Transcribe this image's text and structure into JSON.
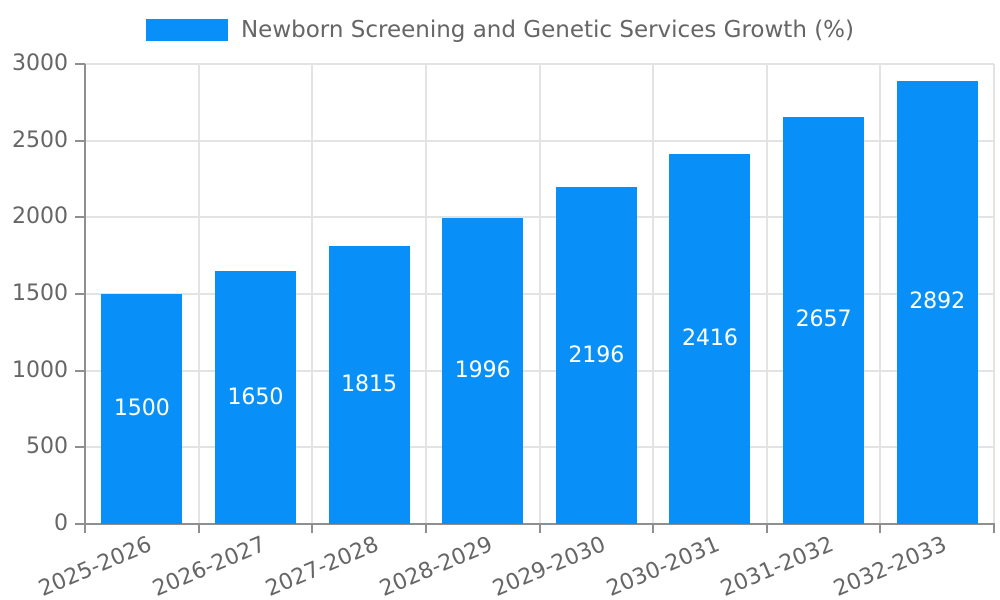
{
  "chart_data": {
    "type": "bar",
    "title": "Newborn Screening and Genetic Services Growth (%)",
    "legend": {
      "position": "top",
      "label": "Newborn Screening and Genetic Services Growth (%)"
    },
    "categories": [
      "2025-2026",
      "2026-2027",
      "2027-2028",
      "2028-2029",
      "2029-2030",
      "2030-2031",
      "2031-2032",
      "2032-2033"
    ],
    "series": [
      {
        "name": "Newborn Screening and Genetic Services Growth (%)",
        "values": [
          1500,
          1650,
          1815,
          1996,
          2196,
          2416,
          2657,
          2892
        ],
        "data_labels": [
          "1500",
          "1650",
          "1815",
          "1996",
          "2196",
          "2416",
          "2657",
          "2892"
        ]
      }
    ],
    "ylabel": "",
    "xlabel": "",
    "ylim": [
      0,
      3000
    ],
    "yticks": [
      0,
      500,
      1000,
      1500,
      2000,
      2500,
      3000
    ],
    "ytick_labels": [
      "0",
      "500",
      "1000",
      "1500",
      "2000",
      "2500",
      "3000"
    ],
    "grid": "on",
    "colors": {
      "bar": "#0990f8",
      "bar_label_text": "#ffffff",
      "grid_line": "#e3e3e3",
      "axis_line": "#8f8f8f",
      "tick_label_text": "#666666",
      "legend_text": "#666666"
    }
  }
}
